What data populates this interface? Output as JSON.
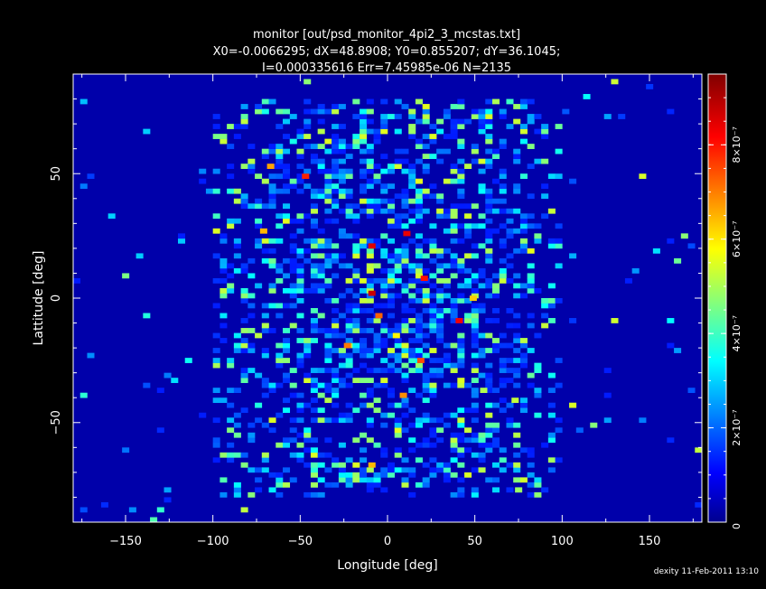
{
  "window": {
    "background": "#000000",
    "footer": "dexity 11-Feb-2011 13:10"
  },
  "chart_data": {
    "type": "heatmap",
    "title": "monitor [out/psd_monitor_4pi2_3_mcstas.txt]",
    "subtitle_lines": [
      "X0=-0.0066295; dX=48.8908; Y0=0.855207; dY=36.1045;",
      "I=0.000335616 Err=7.45985e-06 N=2135"
    ],
    "xlabel": "Longitude [deg]",
    "ylabel": "Lattitude [deg]",
    "xlim": [
      -180,
      180
    ],
    "ylim": [
      -90,
      90
    ],
    "x_ticks": [
      -150,
      -100,
      -50,
      0,
      50,
      100,
      150
    ],
    "x_tick_labels": [
      "−150",
      "−100",
      "−50",
      "0",
      "50",
      "100",
      "150"
    ],
    "y_ticks": [
      -50,
      0,
      50
    ],
    "y_tick_labels": [
      "−50",
      "0",
      "50"
    ],
    "colorscale": "jet",
    "background_color": "#0000aa",
    "zlim": [
      0,
      9.5e-07
    ],
    "colorbar_ticks": [
      0,
      2e-07,
      4e-07,
      6e-07,
      8e-07
    ],
    "colorbar_tick_labels": [
      "0",
      "2×10⁻⁷",
      "4×10⁻⁷",
      "6×10⁻⁷",
      "8×10⁻⁷"
    ],
    "bins_x": 90,
    "bins_y": 90,
    "grid": false,
    "notes_points": [
      {
        "x": -47,
        "y": 49,
        "z": 8e-07
      },
      {
        "x": -67,
        "y": 53,
        "z": 6.8e-07
      },
      {
        "x": 11,
        "y": 26,
        "z": 8.5e-07
      },
      {
        "x": -9,
        "y": 21,
        "z": 8.6e-07
      },
      {
        "x": -9,
        "y": 2,
        "z": 8.8e-07
      },
      {
        "x": 41,
        "y": -9,
        "z": 8.4e-07
      },
      {
        "x": 21,
        "y": 8,
        "z": 8.2e-07
      },
      {
        "x": 19,
        "y": -25,
        "z": 7.6e-07
      },
      {
        "x": 9,
        "y": -39,
        "z": 7e-07
      },
      {
        "x": -9,
        "y": -67,
        "z": 6.6e-07
      },
      {
        "x": 5,
        "y": -15,
        "z": 6e-07
      },
      {
        "x": 49,
        "y": 0,
        "z": 6.4e-07
      },
      {
        "x": -23,
        "y": -19,
        "z": 7.2e-07
      },
      {
        "x": -71,
        "y": 27,
        "z": 6.6e-07
      },
      {
        "x": -5,
        "y": -7,
        "z": 7.4e-07
      },
      {
        "x": 73,
        "y": -41,
        "z": 5.4e-07
      },
      {
        "x": 55,
        "y": -37,
        "z": 5.2e-07
      },
      {
        "x": 75,
        "y": -77,
        "z": 5e-07
      }
    ]
  }
}
